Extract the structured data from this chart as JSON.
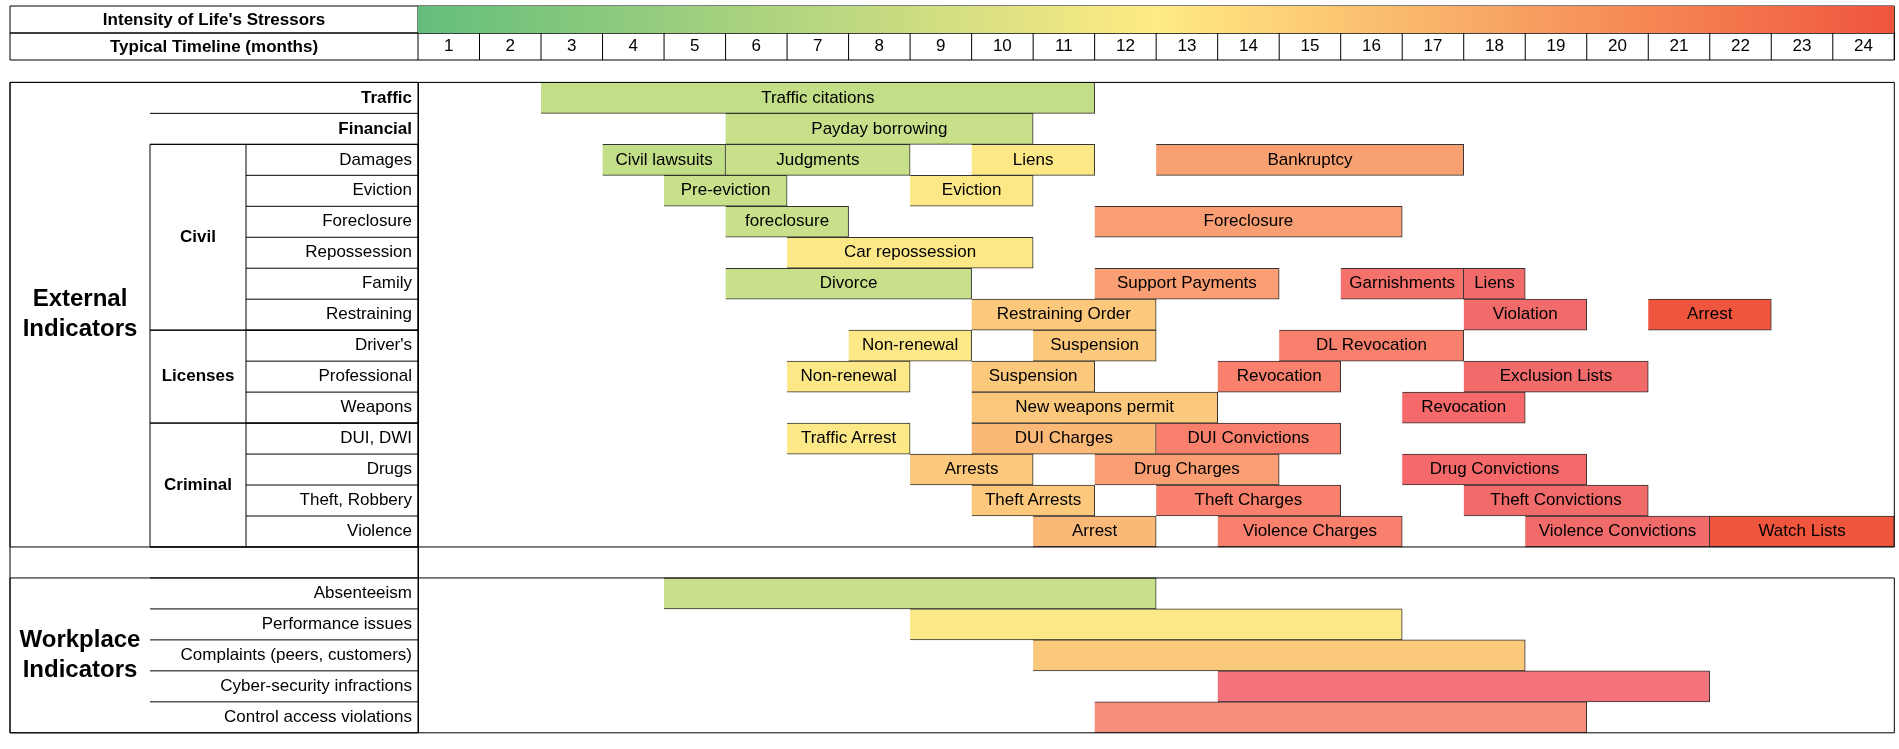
{
  "chart_data": {
    "type": "bar",
    "orientation": "horizontal",
    "xlabel": "Typical Timeline (months)",
    "annotations": [
      "Intensity of Life's Stressors",
      "External Indicators",
      "Civil",
      "Licenses",
      "Criminal",
      "Workplace Indicators"
    ],
    "categories": [
      "Traffic",
      "Financial",
      "Damages",
      "Eviction",
      "Foreclosure",
      "Repossession",
      "Family",
      "Restraining",
      "Driver's",
      "Professional",
      "Weapons",
      "DUI, DWI",
      "Drugs",
      "Theft, Robbery",
      "Violence",
      null,
      "Absenteeism",
      "Performance issues",
      "Complaints (peers, customers)",
      "Cyber-security infractions",
      "Control access violations"
    ],
    "xlim": [
      0.5,
      24.5
    ],
    "xticks": [
      1,
      2,
      3,
      4,
      5,
      6,
      7,
      8,
      9,
      10,
      11,
      12,
      13,
      14,
      15,
      16,
      17,
      18,
      19,
      20,
      21,
      22,
      23,
      24
    ],
    "series": [
      {
        "values": [
          9,
          5,
          2,
          2,
          2,
          4,
          4,
          3,
          2,
          2,
          4,
          2,
          2,
          2,
          2,
          null,
          8,
          8,
          8,
          8,
          8
        ],
        "base": [
          2.5,
          5.5,
          3.5,
          4.5,
          5.5,
          6.5,
          5.5,
          9.5,
          7.5,
          6.5,
          9.5,
          6.5,
          8.5,
          9.5,
          10.5,
          null,
          4.5,
          8.5,
          10.5,
          13.5,
          11.5
        ],
        "colors": [
          "#c2de86",
          "#c8e08a",
          "#c2de86",
          "#c8e08a",
          "#c8e08a",
          "#fde887",
          "#c8e08a",
          "#fcc97c",
          "#fde887",
          "#fde887",
          "#fcc97c",
          "#fde887",
          "#fcc97c",
          "#fcc97c",
          "#fbb978",
          null,
          "#c8e08a",
          "#fde887",
          "#fbc97c",
          "#f4727a",
          "#f98d7b"
        ],
        "value_labels": [
          "Traffic citations",
          "Payday borrowing",
          "Civil lawsuits",
          "Pre-eviction",
          "foreclosure",
          "Car repossession",
          "Divorce",
          "Restraining Order",
          "Non-renewal",
          "Non-renewal",
          "New weapons permit",
          "Traffic Arrest",
          "Arrests",
          "Theft Arrests",
          "Arrest",
          null,
          null,
          null,
          null,
          null,
          null
        ]
      },
      {
        "values": [
          null,
          null,
          3,
          2,
          5,
          null,
          3,
          2,
          2,
          2,
          2,
          3,
          3,
          3,
          3,
          null,
          null,
          null,
          null,
          null,
          null
        ],
        "base": [
          null,
          null,
          5.5,
          8.5,
          11.5,
          null,
          11.5,
          17.5,
          10.5,
          9.5,
          16.5,
          9.5,
          11.5,
          12.5,
          13.5,
          null,
          null,
          null,
          null,
          null,
          null
        ],
        "colors": [
          null,
          null,
          "#c8e08a",
          "#fde887",
          "#fa9e74",
          null,
          "#fa9e74",
          "#f26b6b",
          "#fcc97c",
          "#fcc97c",
          "#f5696b",
          "#fbb978",
          "#fa9e74",
          "#f8806d",
          "#f8806d",
          null,
          null,
          null,
          null,
          null,
          null
        ],
        "value_labels": [
          null,
          null,
          "Judgments",
          "Eviction",
          "Foreclosure",
          null,
          "Support Payments",
          "Violation",
          "Suspension",
          "Suspension",
          "Revocation",
          "DUI Charges",
          "Drug Charges",
          "Theft Charges",
          "Violence Charges",
          null,
          null,
          null,
          null,
          null,
          null
        ]
      },
      {
        "values": [
          null,
          null,
          2,
          null,
          null,
          null,
          2,
          2,
          3,
          2,
          null,
          3,
          3,
          3,
          3,
          null,
          null,
          null,
          null,
          null,
          null
        ],
        "base": [
          null,
          null,
          9.5,
          null,
          null,
          null,
          15.5,
          20.5,
          14.5,
          13.5,
          null,
          12.5,
          16.5,
          17.5,
          18.5,
          null,
          null,
          null,
          null,
          null,
          null
        ],
        "colors": [
          null,
          null,
          "#fde887",
          null,
          null,
          null,
          "#f5716b",
          "#f0553d",
          "#f8806d",
          "#f8806d",
          null,
          "#f8806d",
          "#f5696b",
          "#f26b6b",
          "#f26b6b",
          null,
          null,
          null,
          null,
          null,
          null
        ],
        "value_labels": [
          null,
          null,
          "Liens",
          null,
          null,
          null,
          "Garnishments",
          "Arrest",
          "DL Revocation",
          "Revocation",
          null,
          "DUI Convictions",
          "Drug Convictions",
          "Theft Convictions",
          "Violence Convictions",
          null,
          null,
          null,
          null,
          null,
          null
        ]
      },
      {
        "values": [
          null,
          null,
          5,
          null,
          null,
          null,
          1,
          null,
          null,
          3,
          null,
          null,
          null,
          null,
          3,
          null,
          null,
          null,
          null,
          null,
          null
        ],
        "base": [
          null,
          null,
          12.5,
          null,
          null,
          null,
          17.5,
          null,
          null,
          17.5,
          null,
          null,
          null,
          null,
          21.5,
          null,
          null,
          null,
          null,
          null,
          null
        ],
        "colors": [
          null,
          null,
          "#f9a070",
          null,
          null,
          null,
          "#f26b6b",
          null,
          null,
          "#f26b6b",
          null,
          null,
          null,
          null,
          "#f0553d",
          null,
          null,
          null,
          null,
          null,
          null
        ],
        "value_labels": [
          null,
          null,
          "Bankruptcy",
          null,
          null,
          null,
          "Liens",
          null,
          null,
          "Exclusion Lists",
          null,
          null,
          null,
          null,
          "Watch Lists",
          null,
          null,
          null,
          null,
          null,
          null
        ]
      }
    ]
  }
}
